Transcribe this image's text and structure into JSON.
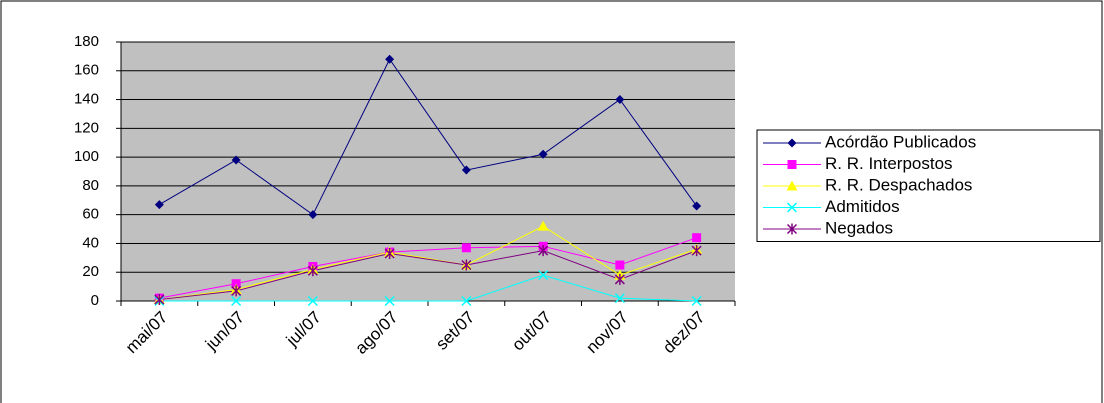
{
  "chart_data": {
    "type": "line",
    "categories": [
      "mai/07",
      "jun/07",
      "jul/07",
      "ago/07",
      "set/07",
      "out/07",
      "nov/07",
      "dez/07"
    ],
    "series": [
      {
        "name": "Acórdão Publicados",
        "color": "#000080",
        "marker": "diamond",
        "values": [
          67,
          98,
          60,
          168,
          91,
          102,
          140,
          66
        ]
      },
      {
        "name": "R. R. Interpostos",
        "color": "#ff00ff",
        "marker": "square",
        "values": [
          2,
          12,
          24,
          34,
          37,
          38,
          25,
          44
        ]
      },
      {
        "name": "R. R. Despachados",
        "color": "#ffff00",
        "marker": "triangle",
        "values": [
          1,
          8,
          22,
          34,
          25,
          52,
          18,
          36
        ]
      },
      {
        "name": "Admitidos",
        "color": "#00ffff",
        "marker": "x",
        "values": [
          0,
          0,
          0,
          0,
          0,
          18,
          2,
          0
        ]
      },
      {
        "name": "Negados",
        "color": "#800080",
        "marker": "asterisk",
        "values": [
          1,
          7,
          21,
          33,
          25,
          35,
          15,
          35
        ]
      }
    ],
    "ylim": [
      0,
      180
    ],
    "yticks": [
      0,
      20,
      40,
      60,
      80,
      100,
      120,
      140,
      160,
      180
    ],
    "grid": true,
    "legend": "right",
    "plot_background": "#c0c0c0"
  }
}
